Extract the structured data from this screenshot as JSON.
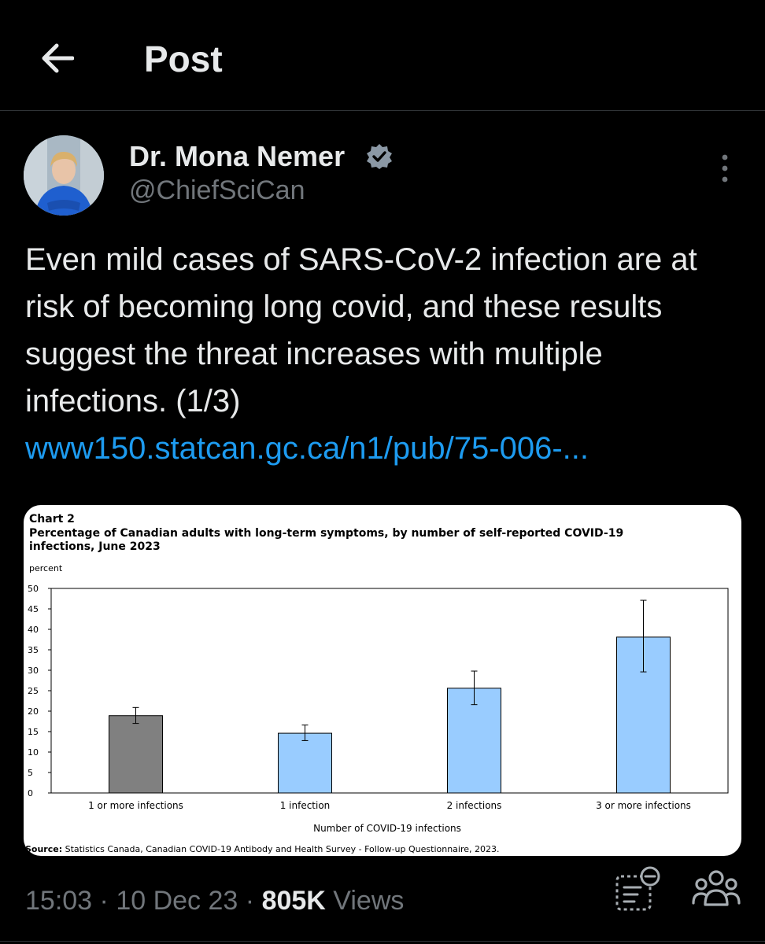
{
  "header": {
    "title": "Post"
  },
  "author": {
    "name": "Dr. Mona Nemer",
    "handle": "@ChiefSciCan"
  },
  "post": {
    "text": "Even mild cases of SARS-CoV-2 infection are at risk of becoming long covid, and these results suggest the threat increases with multiple infections. (1/3)",
    "link": "www150.statcan.gc.ca/n1/pub/75-006-..."
  },
  "media": {
    "chart_label": "Chart 2",
    "source_label": "Source:",
    "source_text": " Statistics Canada, Canadian COVID-19 Antibody and Health Survey - Follow-up Questionnaire, 2023."
  },
  "meta": {
    "time": "15:03",
    "date": "10 Dec 23",
    "views_count": "805K",
    "views_label": "Views",
    "separator": "·"
  },
  "icons": {
    "back": "arrow-left-icon",
    "verified": "verified-badge-icon",
    "more": "more-vertical-icon",
    "summary": "post-summary-icon",
    "community": "community-icon"
  },
  "colors": {
    "link": "#1d9bf0",
    "muted": "#71767b",
    "text": "#e7e9ea",
    "bar_total": "#808080",
    "bar_group": "#99ccff"
  },
  "chart_data": {
    "type": "bar",
    "title": "Percentage of Canadian adults with long-term symptoms, by number of self-reported COVID-19 infections, June 2023",
    "ylabel": "percent",
    "xlabel": "Number of COVID-19 infections",
    "categories": [
      "1 or more infections",
      "1 infection",
      "2 infections",
      "3 or more infections"
    ],
    "values": [
      18.9,
      14.6,
      25.6,
      38.1
    ],
    "error_low": [
      17.0,
      12.8,
      21.6,
      29.6
    ],
    "error_high": [
      20.9,
      16.6,
      29.8,
      47.1
    ],
    "bar_colors": [
      "#808080",
      "#99ccff",
      "#99ccff",
      "#99ccff"
    ],
    "ylim": [
      0,
      50
    ],
    "yticks": [
      0,
      5,
      10,
      15,
      20,
      25,
      30,
      35,
      40,
      45,
      50
    ],
    "grid": false,
    "legend": "none"
  }
}
